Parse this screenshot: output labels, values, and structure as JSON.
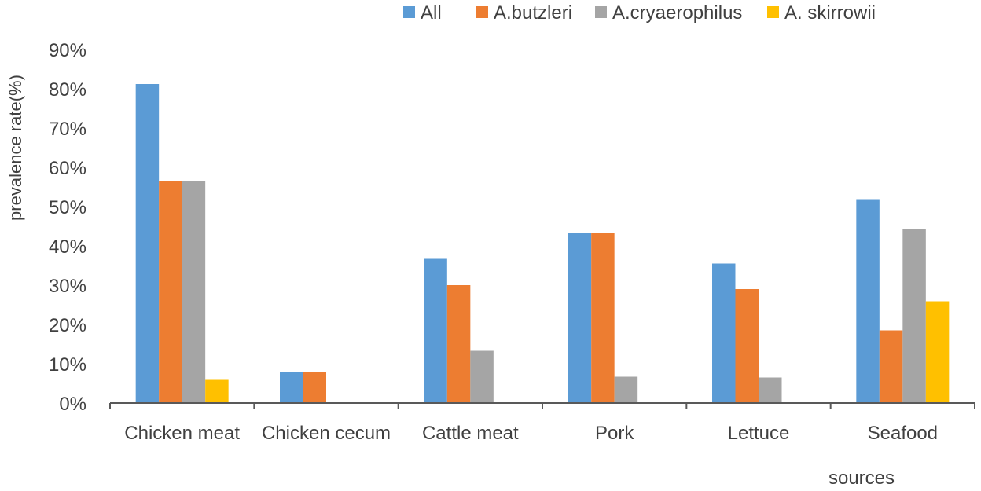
{
  "chart_data": {
    "type": "bar",
    "title": "",
    "xlabel": "sources",
    "ylabel": "prevalence rate(%)",
    "categories": [
      "Chicken meat",
      "Chicken cecum",
      "Cattle meat",
      "Pork",
      "Lettuce",
      "Seafood"
    ],
    "series": [
      {
        "name": "All",
        "color": "#5B9BD5",
        "values": [
          81.2,
          8.0,
          36.7,
          43.3,
          35.5,
          51.9
        ]
      },
      {
        "name": "A.butzleri",
        "color": "#ED7D31",
        "values": [
          56.5,
          8.0,
          30.0,
          43.3,
          29.0,
          18.5
        ]
      },
      {
        "name": "A.cryaerophilus",
        "color": "#A5A5A5",
        "values": [
          56.5,
          0,
          13.3,
          6.7,
          6.5,
          44.4
        ]
      },
      {
        "name": "A. skirrowii",
        "color": "#FFC000",
        "values": [
          5.9,
          0,
          0,
          0,
          0,
          25.9
        ]
      }
    ],
    "ylim": [
      0,
      90
    ],
    "yticks": [
      "0%",
      "10%",
      "20%",
      "30%",
      "40%",
      "50%",
      "60%",
      "70%",
      "80%",
      "90%"
    ],
    "legend_position": "top-right",
    "grid": false
  }
}
